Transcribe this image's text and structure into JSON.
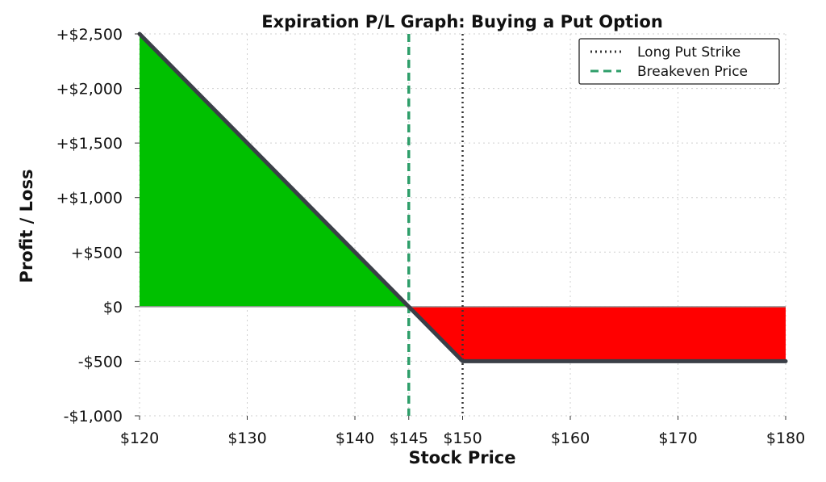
{
  "chart_data": {
    "type": "line",
    "title": "Expiration P/L Graph: Buying a Put Option",
    "xlabel": "Stock Price",
    "ylabel": "Profit / Loss",
    "xlim": [
      120,
      180
    ],
    "ylim": [
      -1000,
      2500
    ],
    "x_ticks": [
      {
        "value": 120,
        "label": "$120"
      },
      {
        "value": 130,
        "label": "$130"
      },
      {
        "value": 140,
        "label": "$140"
      },
      {
        "value": 145,
        "label": "$145"
      },
      {
        "value": 150,
        "label": "$150"
      },
      {
        "value": 160,
        "label": "$160"
      },
      {
        "value": 170,
        "label": "$170"
      },
      {
        "value": 180,
        "label": "$180"
      }
    ],
    "y_ticks": [
      {
        "value": 2500,
        "label": "+$2,500"
      },
      {
        "value": 2000,
        "label": "+$2,000"
      },
      {
        "value": 1500,
        "label": "+$1,500"
      },
      {
        "value": 1000,
        "label": "+$1,000"
      },
      {
        "value": 500,
        "label": "+$500"
      },
      {
        "value": 0,
        "label": "$0"
      },
      {
        "value": -500,
        "label": "-$500"
      },
      {
        "value": -1000,
        "label": "-$1,000"
      }
    ],
    "series": [
      {
        "x": [
          120,
          145,
          150,
          180
        ],
        "y": [
          2500,
          0,
          -500,
          -500
        ],
        "color": "#3a3f47"
      }
    ],
    "profit_fill_color": "#00c000",
    "loss_fill_color": "#ff0000",
    "vertical_lines": [
      {
        "name": "Long Put Strike",
        "x": 150,
        "style": "dotted",
        "color": "#333333"
      },
      {
        "name": "Breakeven Price",
        "x": 145,
        "style": "dashed",
        "color": "#2e9e6a"
      }
    ],
    "grid": true,
    "legend_position": "top-right"
  }
}
